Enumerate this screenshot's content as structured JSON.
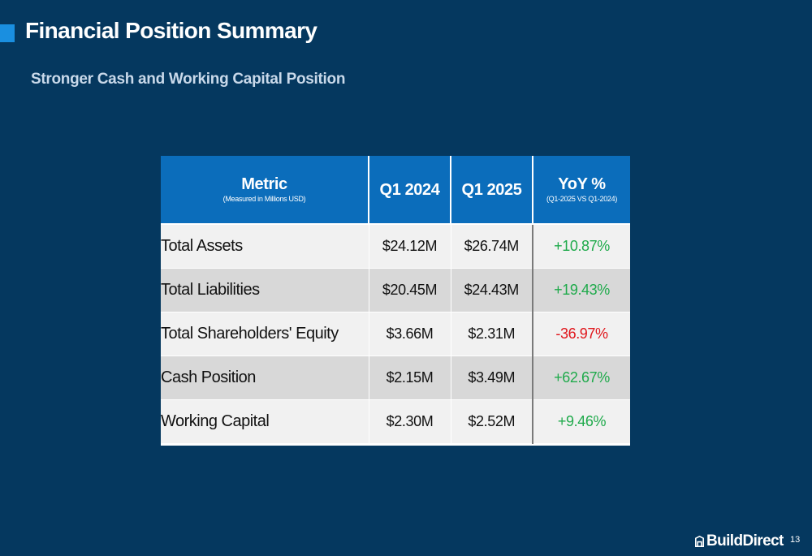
{
  "slide": {
    "title": "Financial Position Summary",
    "subtitle": "Stronger Cash and Working Capital Position",
    "page_number": "13",
    "logo_text": "BuildDirect"
  },
  "table": {
    "headers": {
      "metric": "Metric",
      "metric_sub": "(Measured in Millions USD)",
      "q1_2024": "Q1 2024",
      "q1_2025": "Q1 2025",
      "yoy": "YoY %",
      "yoy_sub": "(Q1-2025 VS Q1-2024)"
    },
    "rows": [
      {
        "metric": "Total Assets",
        "q1_2024": "$24.12M",
        "q1_2025": "$26.74M",
        "yoy": "+10.87%"
      },
      {
        "metric": "Total Liabilities",
        "q1_2024": "$20.45M",
        "q1_2025": "$24.43M",
        "yoy": "+19.43%"
      },
      {
        "metric": "Total Shareholders' Equity",
        "q1_2024": "$3.66M",
        "q1_2025": "$2.31M",
        "yoy": "-36.97%"
      },
      {
        "metric": "Cash Position",
        "q1_2024": "$2.15M",
        "q1_2025": "$3.49M",
        "yoy": "+62.67%"
      },
      {
        "metric": "Working Capital",
        "q1_2024": "$2.30M",
        "q1_2025": "$2.52M",
        "yoy": "+9.46%"
      }
    ]
  },
  "colors": {
    "background": "#05385f",
    "header": "#0b6dbb",
    "accent": "#1a8fe0",
    "positive": "#1faa4b",
    "negative": "#e0151b"
  },
  "icons": {
    "logo": "house-icon"
  }
}
